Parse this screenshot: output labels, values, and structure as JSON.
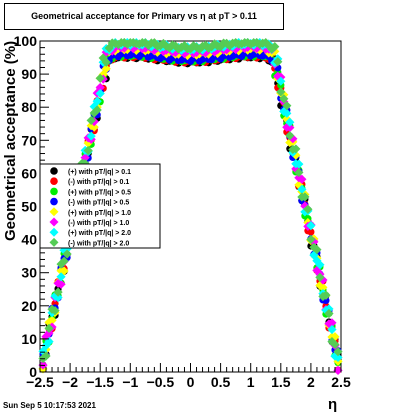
{
  "title": "Geometrical acceptance for Primary vs   η at pT > 0.11",
  "timestamp": "Sun Sep  5 10:17:53 2021",
  "chart_data": {
    "type": "scatter",
    "title": "Geometrical acceptance for Primary vs   η at pT > 0.11",
    "xlabel": "η",
    "ylabel": "Geometrical acceptance (%)",
    "xlim": [
      -2.5,
      2.5
    ],
    "ylim": [
      0,
      100
    ],
    "x_ticks": [
      "−2.5",
      "−2",
      "−1.5",
      "−1",
      "−0.5",
      "0",
      "0.5",
      "1",
      "1.5",
      "2",
      "2.5"
    ],
    "y_ticks": [
      "0",
      "10",
      "20",
      "30",
      "40",
      "50",
      "60",
      "70",
      "80",
      "90",
      "100"
    ],
    "grid": false,
    "legend_position": "middle-left",
    "series": [
      {
        "name": "(+) with pT/|q| > 0.1",
        "color": "#000000",
        "plateau": 94.5,
        "offset": -0.02
      },
      {
        "name": "(-) with pT/|q| > 0.1",
        "color": "#ff0000",
        "plateau": 94.7,
        "offset": 0.0
      },
      {
        "name": "(+) with pT/|q| > 0.5",
        "color": "#00ee00",
        "plateau": 95.0,
        "offset": 0.01
      },
      {
        "name": "(-) with pT/|q| > 0.5",
        "color": "#0000ff",
        "plateau": 95.2,
        "offset": 0.02
      },
      {
        "name": "(+) with pT/|q| > 1.0",
        "color": "#ffff00",
        "plateau": 97.0,
        "offset": 0.03
      },
      {
        "name": "(-) with pT/|q| > 1.0",
        "color": "#ff00ff",
        "plateau": 97.5,
        "offset": 0.04
      },
      {
        "name": "(+) with pT/|q| > 2.0",
        "color": "#00ffff",
        "plateau": 98.5,
        "offset": 0.05
      },
      {
        "name": "(-) with pT/|q| > 2.0",
        "color": "#55cc55",
        "plateau": 98.8,
        "offset": 0.06
      }
    ]
  }
}
